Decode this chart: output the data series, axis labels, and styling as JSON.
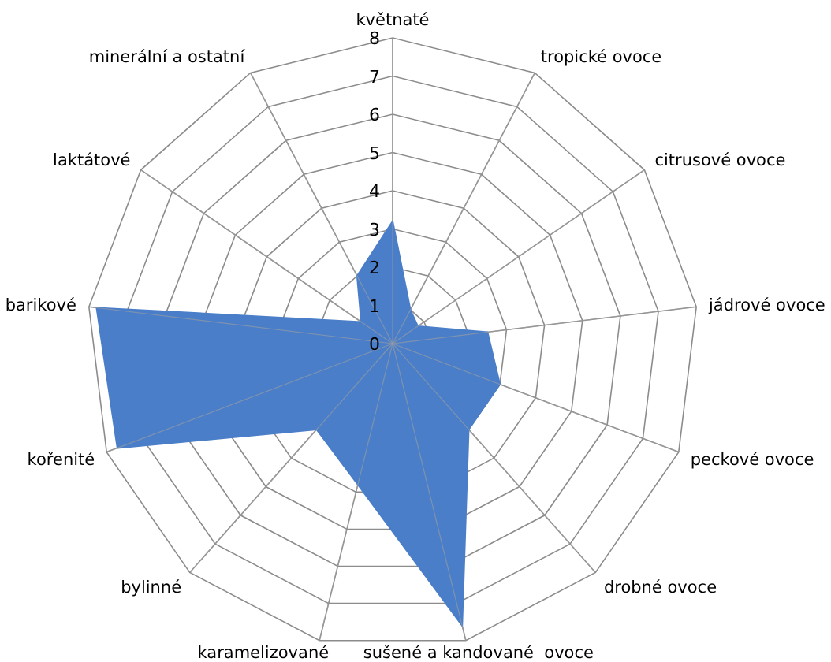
{
  "chart_data": {
    "type": "radar",
    "categories": [
      "květnaté",
      "tropické ovoce",
      "citrusové ovoce",
      "jádrové ovoce",
      "peckové ovoce",
      "drobné ovoce",
      "sušené a kandované  ovoce",
      "karamelizované",
      "bylinné",
      "kořenité",
      "barikové",
      "laktátové",
      "minerální a ostatní"
    ],
    "series": [
      {
        "color": "#4a7ec8",
        "values": [
          3.2,
          1,
          0.8,
          2.5,
          3,
          3,
          7.6,
          3.8,
          3,
          7.7,
          7.8,
          1,
          2
        ]
      }
    ],
    "ylim": [
      0,
      8
    ],
    "yticks": [
      0,
      1,
      2,
      3,
      4,
      5,
      6,
      7,
      8
    ],
    "grid": true
  }
}
